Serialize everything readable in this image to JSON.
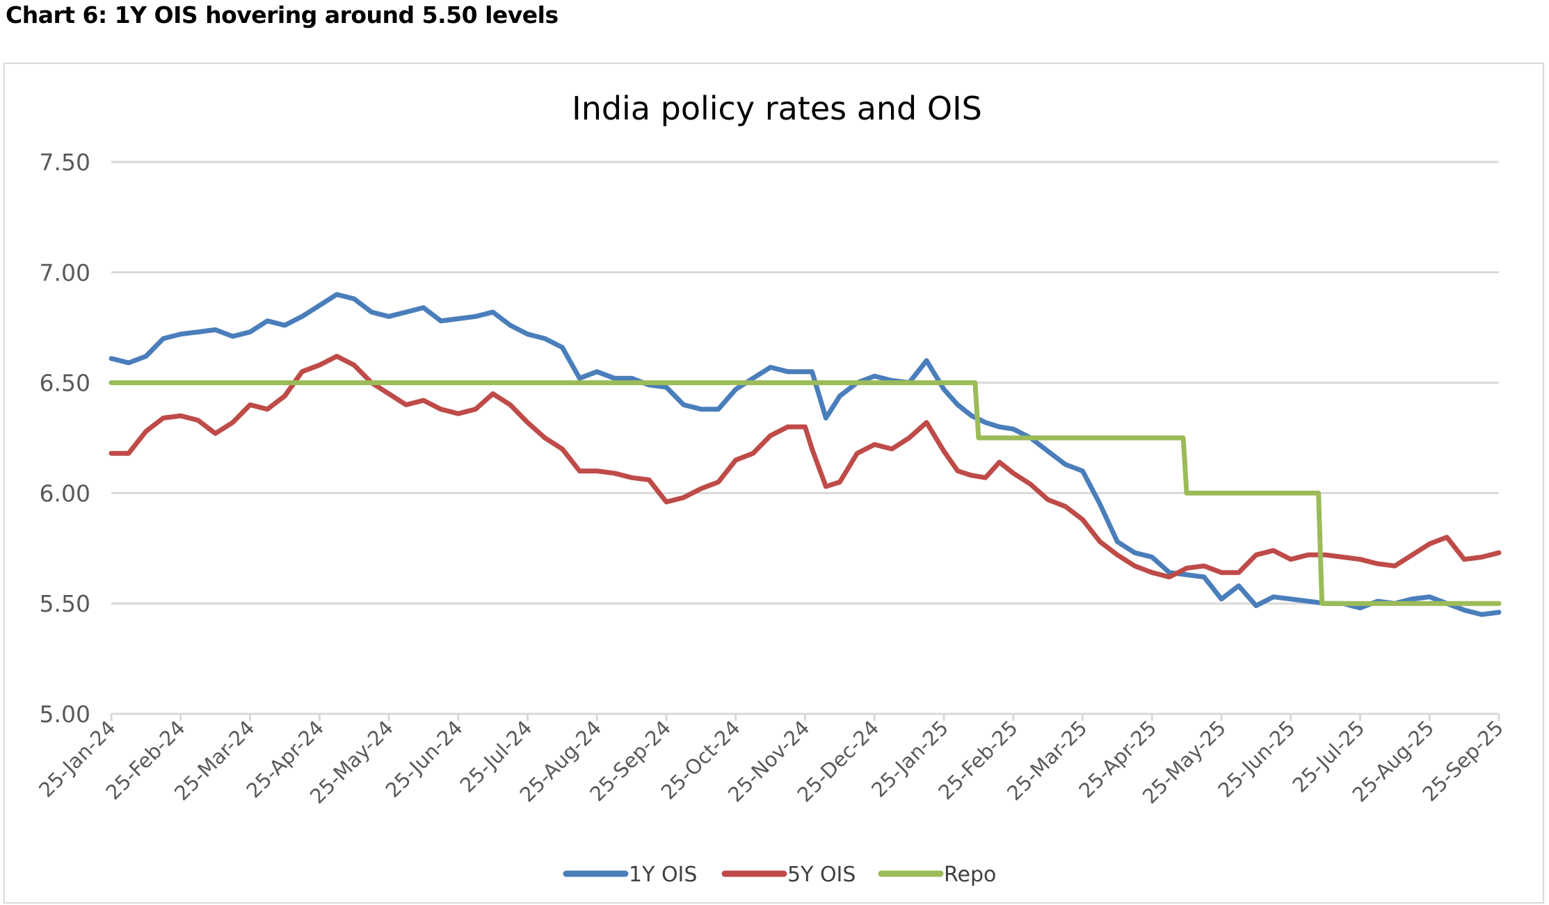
{
  "caption": "Chart 6: 1Y OIS hovering around 5.50 levels",
  "chart_data": {
    "type": "line",
    "title": "India policy rates and OIS",
    "xlabel": "",
    "ylabel": "",
    "ylim": [
      5.0,
      7.5
    ],
    "yticks": [
      "7.50",
      "7.00",
      "6.50",
      "6.00",
      "5.50",
      "5.00"
    ],
    "ytick_values": [
      7.5,
      7.0,
      6.5,
      6.0,
      5.5,
      5.0
    ],
    "categories": [
      "25-Jan-24",
      "25-Feb-24",
      "25-Mar-24",
      "25-Apr-24",
      "25-May-24",
      "25-Jun-24",
      "25-Jul-24",
      "25-Aug-24",
      "25-Sep-24",
      "25-Oct-24",
      "25-Nov-24",
      "25-Dec-24",
      "25-Jan-25",
      "25-Feb-25",
      "25-Mar-25",
      "25-Apr-25",
      "25-May-25",
      "25-Jun-25",
      "25-Jul-25",
      "25-Aug-25",
      "25-Sep-25"
    ],
    "x_unit": "months since 25-Jan-24",
    "grid": true,
    "legend_position": "bottom",
    "series": [
      {
        "name": "1Y OIS",
        "color": "#4a7ebb",
        "x": [
          0,
          0.25,
          0.5,
          0.75,
          1,
          1.25,
          1.5,
          1.75,
          2,
          2.25,
          2.5,
          2.75,
          3,
          3.25,
          3.5,
          3.75,
          4,
          4.25,
          4.5,
          4.75,
          5,
          5.25,
          5.5,
          5.75,
          6,
          6.25,
          6.5,
          6.75,
          7,
          7.25,
          7.5,
          7.75,
          8,
          8.25,
          8.5,
          8.75,
          9,
          9.25,
          9.5,
          9.75,
          10,
          10.1,
          10.3,
          10.5,
          10.75,
          11,
          11.25,
          11.5,
          11.75,
          12,
          12.2,
          12.4,
          12.6,
          12.8,
          13,
          13.25,
          13.5,
          13.75,
          14,
          14.25,
          14.5,
          14.75,
          15,
          15.25,
          15.5,
          15.75,
          16,
          16.25,
          16.5,
          16.75,
          17,
          17.25,
          17.5,
          17.75,
          18,
          18.25,
          18.5,
          18.75,
          19,
          19.25,
          19.5,
          19.75,
          20
        ],
        "values": [
          6.61,
          6.59,
          6.62,
          6.7,
          6.72,
          6.73,
          6.74,
          6.71,
          6.73,
          6.78,
          6.76,
          6.8,
          6.85,
          6.9,
          6.88,
          6.82,
          6.8,
          6.82,
          6.84,
          6.78,
          6.79,
          6.8,
          6.82,
          6.76,
          6.72,
          6.7,
          6.66,
          6.52,
          6.55,
          6.52,
          6.52,
          6.49,
          6.48,
          6.4,
          6.38,
          6.38,
          6.47,
          6.52,
          6.57,
          6.55,
          6.55,
          6.55,
          6.34,
          6.44,
          6.5,
          6.53,
          6.51,
          6.5,
          6.6,
          6.47,
          6.4,
          6.35,
          6.32,
          6.3,
          6.29,
          6.25,
          6.19,
          6.13,
          6.1,
          5.95,
          5.78,
          5.73,
          5.71,
          5.64,
          5.63,
          5.62,
          5.52,
          5.58,
          5.49,
          5.53,
          5.52,
          5.51,
          5.5,
          5.5,
          5.48,
          5.51,
          5.5,
          5.52,
          5.53,
          5.5,
          5.47,
          5.45,
          5.46
        ]
      },
      {
        "name": "5Y OIS",
        "color": "#be4b48",
        "x": [
          0,
          0.25,
          0.5,
          0.75,
          1,
          1.25,
          1.5,
          1.75,
          2,
          2.25,
          2.5,
          2.75,
          3,
          3.25,
          3.5,
          3.75,
          4,
          4.25,
          4.5,
          4.75,
          5,
          5.25,
          5.5,
          5.75,
          6,
          6.25,
          6.5,
          6.75,
          7,
          7.25,
          7.5,
          7.75,
          8,
          8.25,
          8.5,
          8.75,
          9,
          9.25,
          9.5,
          9.75,
          10,
          10.1,
          10.3,
          10.5,
          10.75,
          11,
          11.25,
          11.5,
          11.75,
          12,
          12.2,
          12.4,
          12.6,
          12.8,
          13,
          13.25,
          13.5,
          13.75,
          14,
          14.25,
          14.5,
          14.75,
          15,
          15.25,
          15.5,
          15.75,
          16,
          16.25,
          16.5,
          16.75,
          17,
          17.25,
          17.5,
          17.75,
          18,
          18.25,
          18.5,
          18.75,
          19,
          19.25,
          19.5,
          19.75,
          20
        ],
        "values": [
          6.18,
          6.18,
          6.28,
          6.34,
          6.35,
          6.33,
          6.27,
          6.32,
          6.4,
          6.38,
          6.44,
          6.55,
          6.58,
          6.62,
          6.58,
          6.5,
          6.45,
          6.4,
          6.42,
          6.38,
          6.36,
          6.38,
          6.45,
          6.4,
          6.32,
          6.25,
          6.2,
          6.1,
          6.1,
          6.09,
          6.07,
          6.06,
          5.96,
          5.98,
          6.02,
          6.05,
          6.15,
          6.18,
          6.26,
          6.3,
          6.3,
          6.2,
          6.03,
          6.05,
          6.18,
          6.22,
          6.2,
          6.25,
          6.32,
          6.19,
          6.1,
          6.08,
          6.07,
          6.14,
          6.09,
          6.04,
          5.97,
          5.94,
          5.88,
          5.78,
          5.72,
          5.67,
          5.64,
          5.62,
          5.66,
          5.67,
          5.64,
          5.64,
          5.72,
          5.74,
          5.7,
          5.72,
          5.72,
          5.71,
          5.7,
          5.68,
          5.67,
          5.72,
          5.77,
          5.8,
          5.7,
          5.71,
          5.73
        ]
      },
      {
        "name": "Repo",
        "color": "#9bbb59",
        "x": [
          0,
          12.45,
          12.5,
          15.45,
          15.5,
          17.4,
          17.45,
          20
        ],
        "values": [
          6.5,
          6.5,
          6.25,
          6.25,
          6.0,
          6.0,
          5.5,
          5.5
        ]
      }
    ]
  }
}
